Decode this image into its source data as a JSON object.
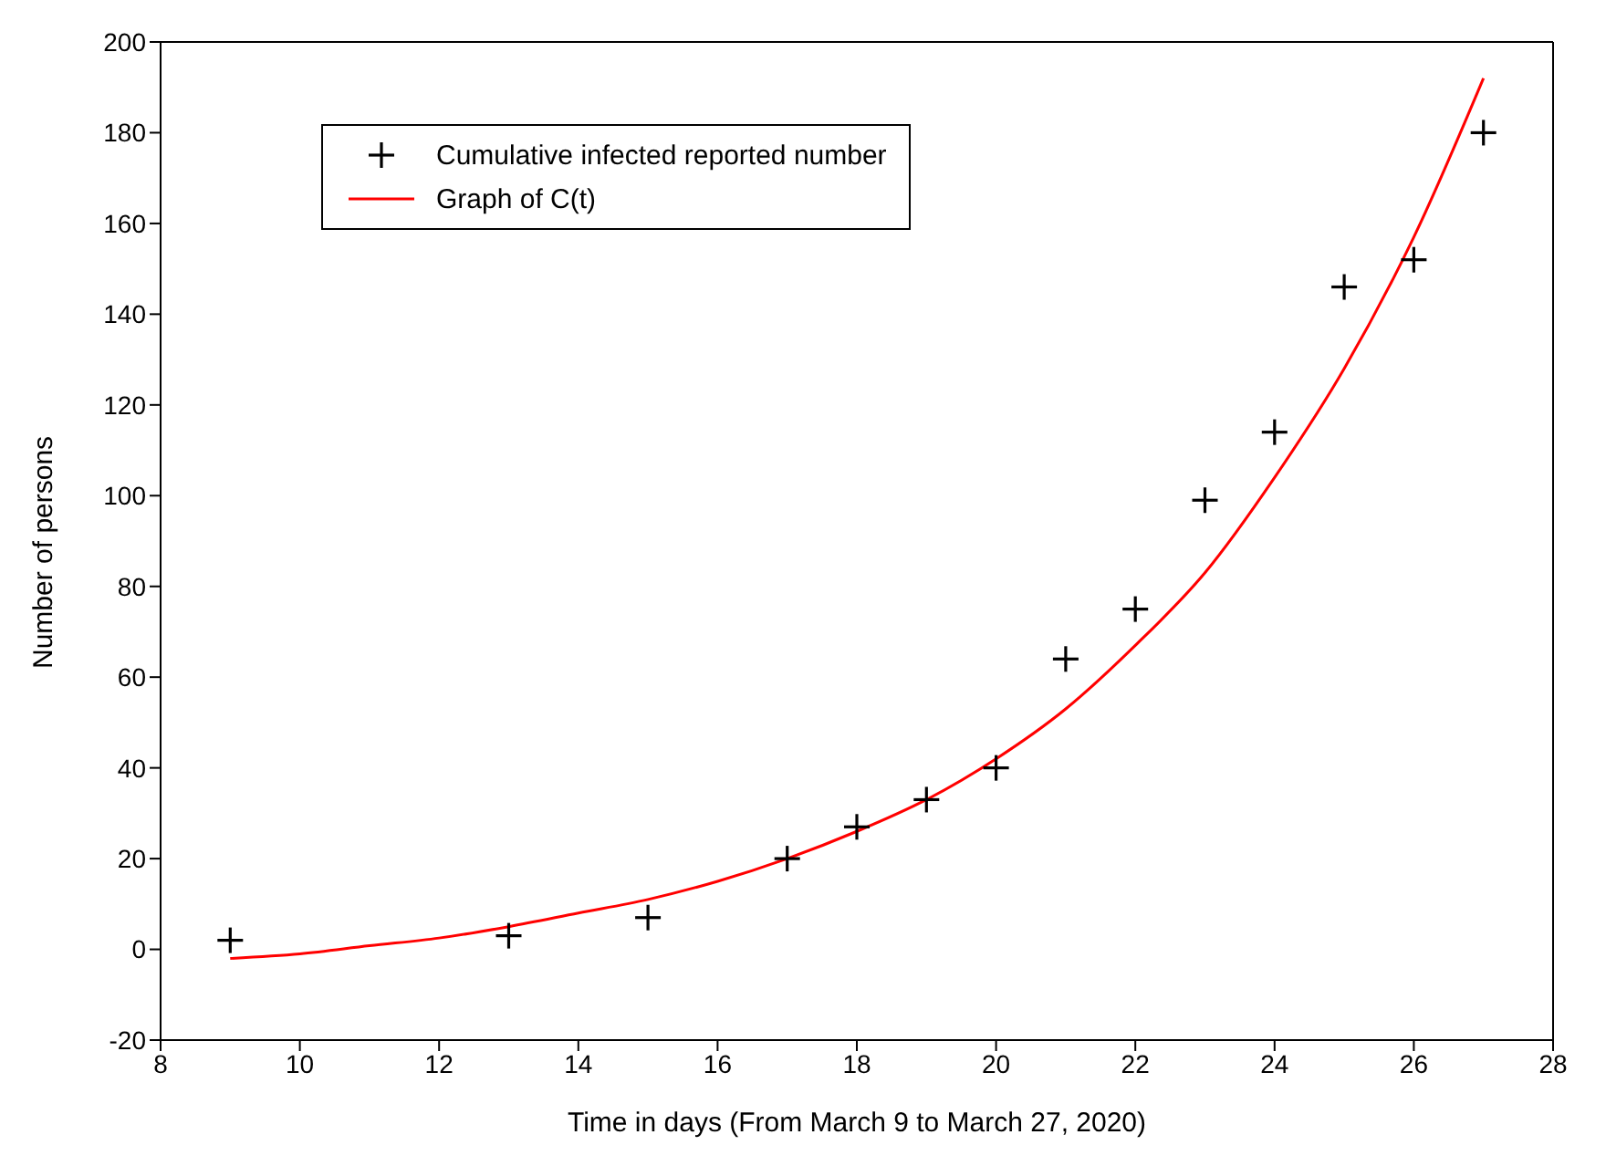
{
  "chart_data": {
    "type": "scatter",
    "xlabel": "Time in days (From March 9 to March 27, 2020)",
    "ylabel": "Number of persons",
    "xlim": [
      8,
      28
    ],
    "xticks": [
      8,
      10,
      12,
      14,
      16,
      18,
      20,
      22,
      24,
      26,
      28
    ],
    "ylim": [
      -20,
      200
    ],
    "yticks": [
      -20,
      0,
      20,
      40,
      60,
      80,
      100,
      120,
      140,
      160,
      180,
      200
    ],
    "legend": "top left",
    "series": [
      {
        "name": "Cumulative infected reported number",
        "color": "#000000",
        "marker": "cross",
        "x": [
          9,
          13,
          15,
          17,
          18,
          19,
          20,
          21,
          22,
          23,
          24,
          25,
          26,
          27
        ],
        "values": [
          2,
          3,
          7,
          20,
          27,
          33,
          40,
          64,
          75,
          99,
          114,
          146,
          152,
          180
        ]
      },
      {
        "name": "Graph of C(t)",
        "type": "line",
        "color": "#ff0000",
        "marker": "none",
        "x": [
          9,
          10,
          11,
          12,
          13,
          14,
          15,
          16,
          17,
          18,
          19,
          20,
          21,
          22,
          23,
          24,
          25,
          26,
          27
        ],
        "values": [
          -2,
          -1,
          0.8,
          2.5,
          5,
          8,
          11,
          15,
          20,
          26,
          33,
          42,
          53,
          67,
          83,
          104,
          128,
          157,
          192
        ]
      }
    ]
  }
}
